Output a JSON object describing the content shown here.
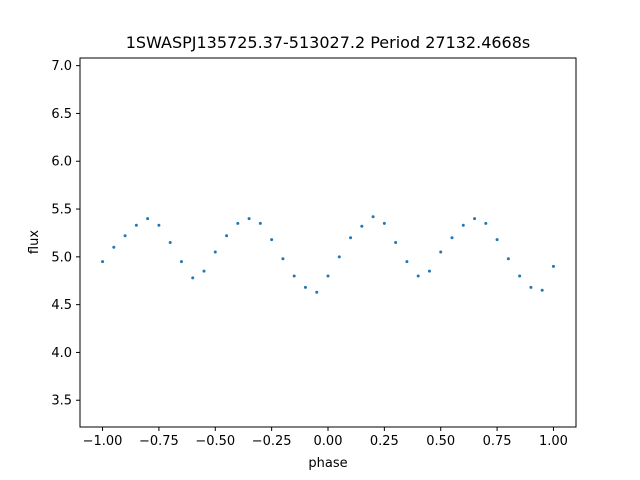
{
  "chart_data": {
    "type": "scatter",
    "title": "1SWASPJ135725.37-513027.2 Period 27132.4668s",
    "xlabel": "phase",
    "ylabel": "flux",
    "xlim": [
      -1.1,
      1.1
    ],
    "ylim": [
      3.22,
      7.08
    ],
    "x_ticks": [
      -1.0,
      -0.75,
      -0.5,
      -0.25,
      0.0,
      0.25,
      0.5,
      0.75,
      1.0
    ],
    "x_tick_labels": [
      "−1.00",
      "−0.75",
      "−0.50",
      "−0.25",
      "0.00",
      "0.25",
      "0.50",
      "0.75",
      "1.00"
    ],
    "y_ticks": [
      3.5,
      4.0,
      4.5,
      5.0,
      5.5,
      6.0,
      6.5,
      7.0
    ],
    "y_tick_labels": [
      "3.5",
      "4.0",
      "4.5",
      "5.0",
      "5.5",
      "6.0",
      "6.5",
      "7.0"
    ],
    "grid": false,
    "point_color": "#1f77b4",
    "series": [
      {
        "phase_range": [
          -1.0,
          1.0
        ],
        "points": [
          [
            -1.0,
            4.95
          ],
          [
            -0.95,
            5.1
          ],
          [
            -0.9,
            5.22
          ],
          [
            -0.85,
            5.33
          ],
          [
            -0.8,
            5.4
          ],
          [
            -0.75,
            5.33
          ],
          [
            -0.7,
            5.15
          ],
          [
            -0.65,
            4.95
          ],
          [
            -0.6,
            4.78
          ],
          [
            -0.55,
            4.85
          ],
          [
            -0.5,
            5.05
          ],
          [
            -0.45,
            5.22
          ],
          [
            -0.4,
            5.35
          ],
          [
            -0.35,
            5.4
          ],
          [
            -0.3,
            5.35
          ],
          [
            -0.25,
            5.18
          ],
          [
            -0.2,
            4.98
          ],
          [
            -0.15,
            4.8
          ],
          [
            -0.1,
            4.68
          ],
          [
            -0.05,
            4.63
          ],
          [
            0.0,
            4.8
          ],
          [
            0.05,
            5.0
          ],
          [
            0.1,
            5.2
          ],
          [
            0.15,
            5.32
          ],
          [
            0.2,
            5.42
          ],
          [
            0.25,
            5.35
          ],
          [
            0.3,
            5.15
          ],
          [
            0.35,
            4.95
          ],
          [
            0.4,
            4.8
          ],
          [
            0.45,
            4.85
          ],
          [
            0.5,
            5.05
          ],
          [
            0.55,
            5.2
          ],
          [
            0.6,
            5.33
          ],
          [
            0.65,
            5.4
          ],
          [
            0.7,
            5.35
          ],
          [
            0.75,
            5.18
          ],
          [
            0.8,
            4.98
          ],
          [
            0.85,
            4.8
          ],
          [
            0.9,
            4.68
          ],
          [
            0.95,
            4.65
          ],
          [
            1.0,
            4.9
          ]
        ]
      }
    ]
  }
}
